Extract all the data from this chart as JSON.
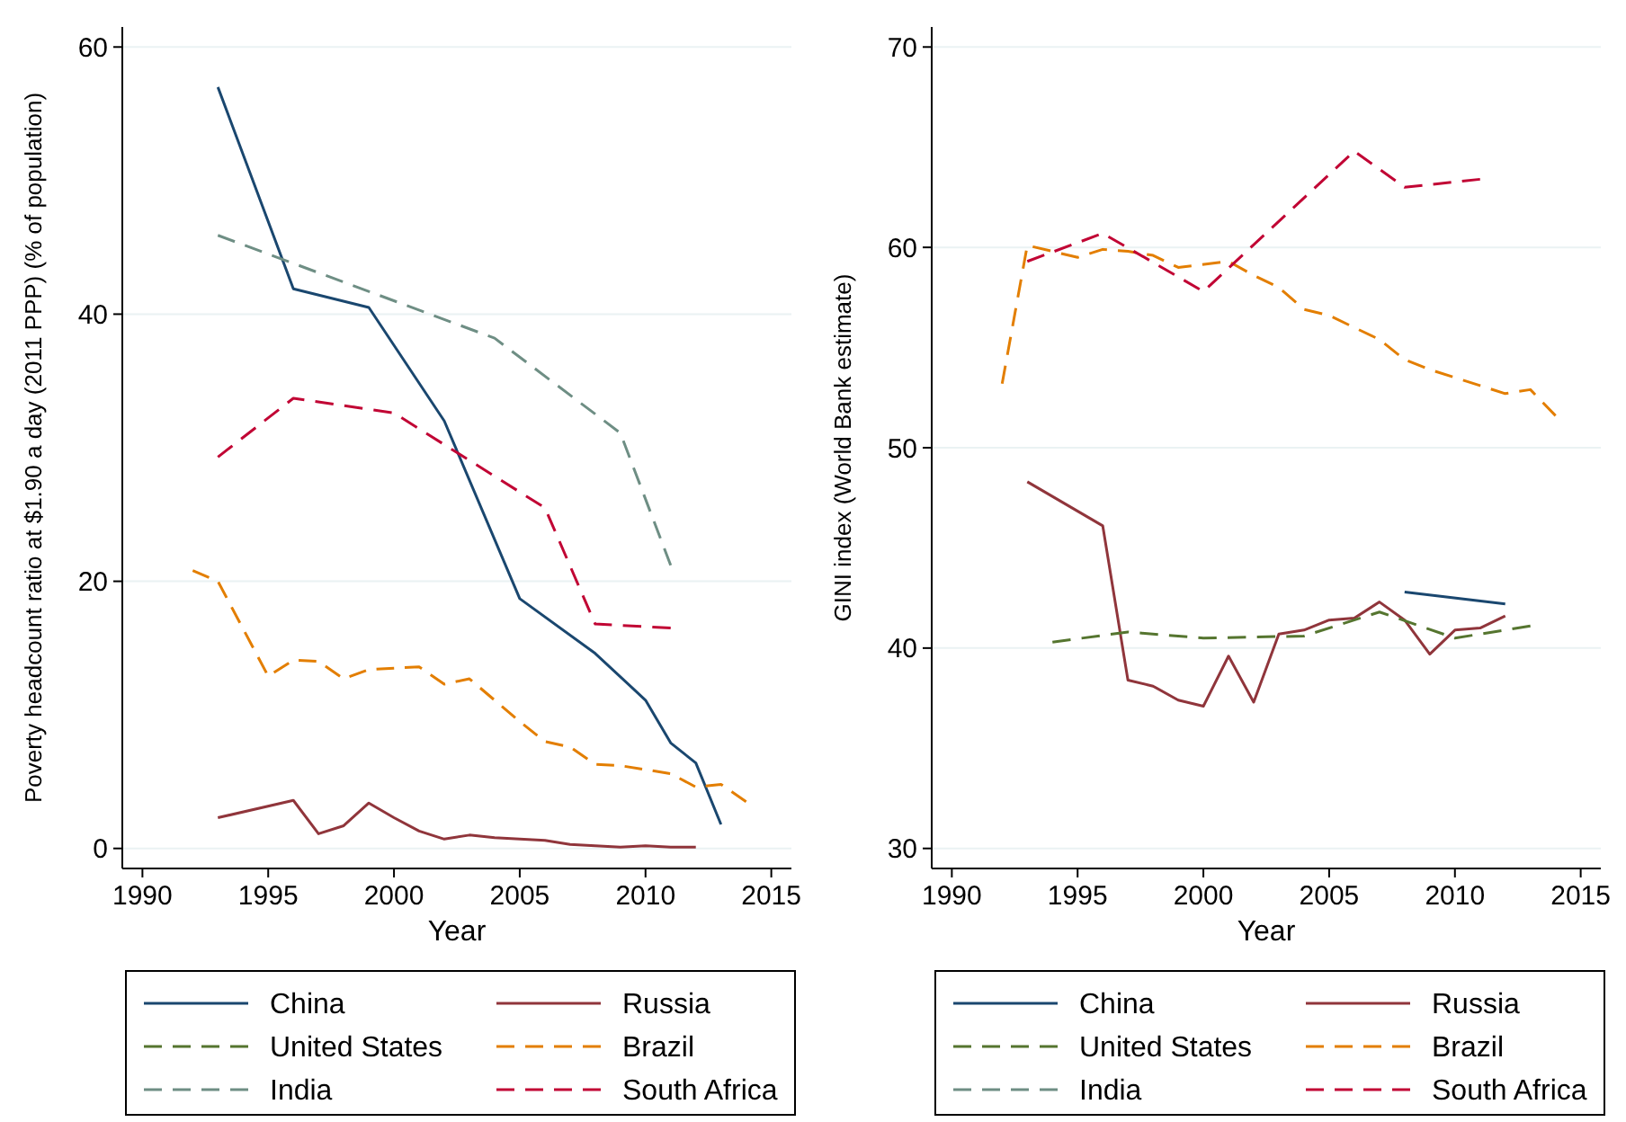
{
  "chart_data": [
    {
      "type": "line",
      "xlabel": "Year",
      "ylabel": "Poverty headcount ratio at $1.90 a day (2011 PPP) (% of population)",
      "xlim": [
        1989.2,
        2015.8
      ],
      "ylim": [
        -1.5,
        61.5
      ],
      "xticks": [
        1990,
        1995,
        2000,
        2005,
        2010,
        2015
      ],
      "yticks": [
        0,
        20,
        40,
        60
      ],
      "grid": "y",
      "legend": "bottom",
      "series": [
        {
          "name": "China",
          "color": "#1a476f",
          "line_style": "solid",
          "x": [
            1993,
            1996,
            1999,
            2002,
            2005,
            2008,
            2010,
            2011,
            2012,
            2013
          ],
          "values": [
            57.0,
            41.9,
            40.5,
            32.0,
            18.7,
            14.6,
            11.1,
            7.9,
            6.4,
            1.8
          ]
        },
        {
          "name": "Russia",
          "color": "#90353b",
          "line_style": "solid",
          "x": [
            1993,
            1996,
            1997,
            1998,
            1999,
            2000,
            2001,
            2002,
            2003,
            2004,
            2005,
            2006,
            2007,
            2008,
            2009,
            2010,
            2011,
            2012
          ],
          "values": [
            2.3,
            3.6,
            1.1,
            1.7,
            3.4,
            2.3,
            1.3,
            0.7,
            1.0,
            0.8,
            0.7,
            0.6,
            0.3,
            0.2,
            0.1,
            0.2,
            0.1,
            0.1
          ]
        },
        {
          "name": "United States",
          "color": "#55752f",
          "line_style": "dashed"
        },
        {
          "name": "Brazil",
          "color": "#e37e00",
          "line_style": "dashed",
          "x": [
            1992,
            1993,
            1995,
            1996,
            1997,
            1998,
            1999,
            2001,
            2002,
            2003,
            2004,
            2005,
            2006,
            2007,
            2008,
            2009,
            2011,
            2012,
            2013,
            2014
          ],
          "values": [
            20.8,
            20.0,
            12.9,
            14.1,
            14.0,
            12.7,
            13.4,
            13.6,
            12.3,
            12.7,
            11.1,
            9.5,
            8.0,
            7.6,
            6.3,
            6.2,
            5.6,
            4.6,
            4.8,
            3.5
          ]
        },
        {
          "name": "India",
          "color": "#6e8e84",
          "line_style": "dashed",
          "x": [
            1993,
            2004,
            2009,
            2011
          ],
          "values": [
            45.9,
            38.2,
            31.1,
            21.2
          ]
        },
        {
          "name": "South Africa",
          "color": "#c10534",
          "line_style": "dashed",
          "x": [
            1993,
            1996,
            2000,
            2006,
            2008,
            2011
          ],
          "values": [
            29.3,
            33.7,
            32.6,
            25.5,
            16.8,
            16.5
          ]
        }
      ]
    },
    {
      "type": "line",
      "xlabel": "Year",
      "ylabel": "GINI index (World Bank estimate)",
      "xlim": [
        1989.2,
        2015.8
      ],
      "ylim": [
        29,
        71
      ],
      "xticks": [
        1990,
        1995,
        2000,
        2005,
        2010,
        2015
      ],
      "yticks": [
        30,
        40,
        50,
        60,
        70
      ],
      "grid": "y",
      "legend": "bottom",
      "series": [
        {
          "name": "China",
          "color": "#1a476f",
          "line_style": "solid",
          "x": [
            2008,
            2012
          ],
          "values": [
            42.8,
            42.2
          ]
        },
        {
          "name": "Russia",
          "color": "#90353b",
          "line_style": "solid",
          "x": [
            1993,
            1996,
            1997,
            1998,
            1999,
            2000,
            2001,
            2002,
            2003,
            2004,
            2005,
            2006,
            2007,
            2008,
            2009,
            2010,
            2011,
            2012
          ],
          "values": [
            48.3,
            46.1,
            38.4,
            38.1,
            37.4,
            37.1,
            39.6,
            37.3,
            40.7,
            40.9,
            41.4,
            41.5,
            42.3,
            41.4,
            39.7,
            40.9,
            41.0,
            41.6
          ]
        },
        {
          "name": "United States",
          "color": "#55752f",
          "line_style": "dashed",
          "x": [
            1994,
            1997,
            2000,
            2004,
            2007,
            2010,
            2013
          ],
          "values": [
            40.3,
            40.8,
            40.5,
            40.6,
            41.8,
            40.5,
            41.1
          ]
        },
        {
          "name": "Brazil",
          "color": "#e37e00",
          "line_style": "dashed",
          "x": [
            1992,
            1993,
            1995,
            1996,
            1997,
            1998,
            1999,
            2001,
            2002,
            2003,
            2004,
            2005,
            2006,
            2007,
            2008,
            2009,
            2011,
            2012,
            2013,
            2014
          ],
          "values": [
            53.2,
            60.1,
            59.5,
            59.9,
            59.8,
            59.6,
            59.0,
            59.3,
            58.6,
            58.0,
            56.9,
            56.6,
            56.0,
            55.4,
            54.4,
            53.9,
            53.1,
            52.7,
            52.9,
            51.6
          ]
        },
        {
          "name": "India",
          "color": "#6e8e84",
          "line_style": "dashed"
        },
        {
          "name": "South Africa",
          "color": "#c10534",
          "line_style": "dashed",
          "x": [
            1993,
            1996,
            2000,
            2006,
            2008,
            2011
          ],
          "values": [
            59.3,
            60.7,
            57.8,
            64.8,
            63.0,
            63.4
          ]
        }
      ]
    }
  ]
}
